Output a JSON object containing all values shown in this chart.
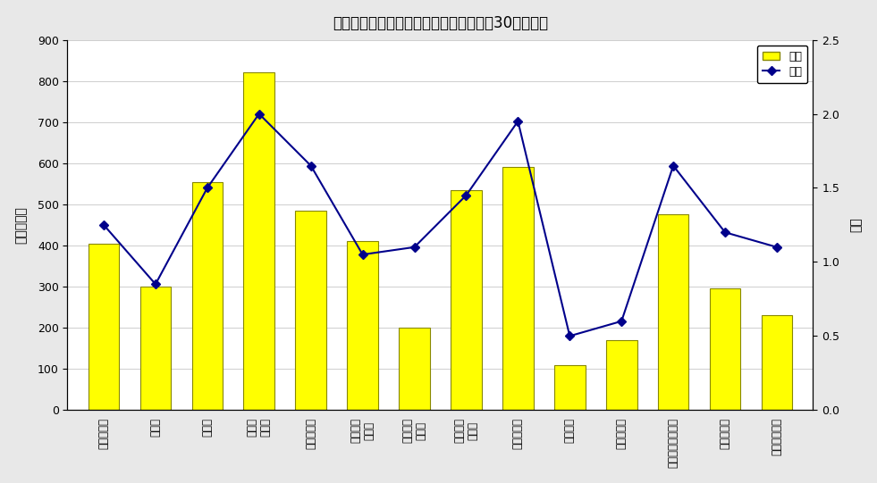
{
  "title": "産業別年末賞与の支給状況（事業所規模30人以上）",
  "categories": [
    "調査産業計",
    "建設業",
    "製造業",
    "電気・\nガス＊",
    "情報通信業",
    "運輸業，\n郵便業",
    "卸売業，\n小売業",
    "金融業，\n保険業",
    "学術研究＊",
    "宿泊業＊",
    "生活関連＊",
    "教育，学習支援業",
    "医療，福祉",
    "サービス業＊"
  ],
  "bar_values": [
    405,
    300,
    555,
    820,
    485,
    410,
    200,
    535,
    590,
    110,
    170,
    475,
    295,
    230
  ],
  "line_values": [
    1.25,
    0.85,
    1.5,
    2.0,
    1.65,
    1.05,
    1.1,
    1.45,
    1.95,
    0.5,
    0.6,
    1.65,
    1.2,
    1.1
  ],
  "bar_color": "#FFFF00",
  "bar_edge_color": "#888800",
  "line_color": "#00008B",
  "marker_color": "#00008B",
  "ylabel_left": "金額　千円",
  "ylabel_right": "月数",
  "ylim_left": [
    0,
    900
  ],
  "ylim_right": [
    0,
    2.5
  ],
  "yticks_left": [
    0,
    100,
    200,
    300,
    400,
    500,
    600,
    700,
    800,
    900
  ],
  "yticks_right": [
    0.0,
    0.5,
    1.0,
    1.5,
    2.0,
    2.5
  ],
  "legend_items": [
    "金額",
    "月数"
  ],
  "background_color": "#e8e8e8",
  "plot_bg_color": "#ffffff"
}
